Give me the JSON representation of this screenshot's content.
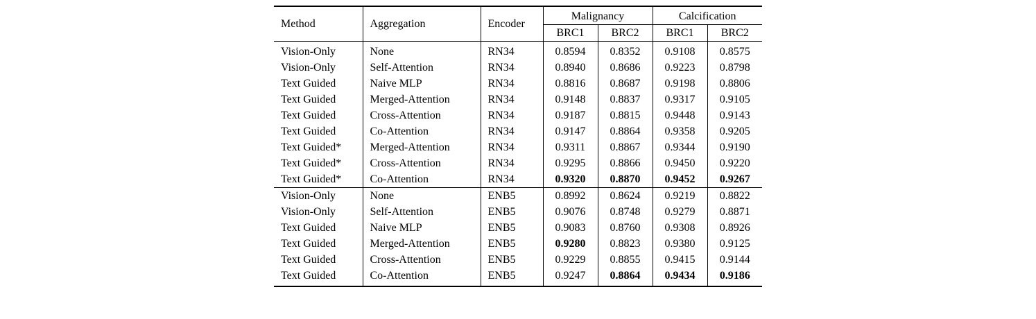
{
  "table": {
    "header": {
      "method": "Method",
      "aggregation": "Aggregation",
      "encoder": "Encoder",
      "malignancy": "Malignancy",
      "calcification": "Calcification",
      "sub": [
        "BRC1",
        "BRC2",
        "BRC1",
        "BRC2"
      ]
    },
    "section_break_index": 9,
    "rows": [
      {
        "method": "Vision-Only",
        "aggregation": "None",
        "encoder": "RN34",
        "values": [
          "0.8594",
          "0.8352",
          "0.9108",
          "0.8575"
        ],
        "bold": [
          false,
          false,
          false,
          false
        ]
      },
      {
        "method": "Vision-Only",
        "aggregation": "Self-Attention",
        "encoder": "RN34",
        "values": [
          "0.8940",
          "0.8686",
          "0.9223",
          "0.8798"
        ],
        "bold": [
          false,
          false,
          false,
          false
        ]
      },
      {
        "method": "Text Guided",
        "aggregation": "Naive MLP",
        "encoder": "RN34",
        "values": [
          "0.8816",
          "0.8687",
          "0.9198",
          "0.8806"
        ],
        "bold": [
          false,
          false,
          false,
          false
        ]
      },
      {
        "method": "Text Guided",
        "aggregation": "Merged-Attention",
        "encoder": "RN34",
        "values": [
          "0.9148",
          "0.8837",
          "0.9317",
          "0.9105"
        ],
        "bold": [
          false,
          false,
          false,
          false
        ]
      },
      {
        "method": "Text Guided",
        "aggregation": "Cross-Attention",
        "encoder": "RN34",
        "values": [
          "0.9187",
          "0.8815",
          "0.9448",
          "0.9143"
        ],
        "bold": [
          false,
          false,
          false,
          false
        ]
      },
      {
        "method": "Text Guided",
        "aggregation": "Co-Attention",
        "encoder": "RN34",
        "values": [
          "0.9147",
          "0.8864",
          "0.9358",
          "0.9205"
        ],
        "bold": [
          false,
          false,
          false,
          false
        ]
      },
      {
        "method": "Text Guided*",
        "aggregation": "Merged-Attention",
        "encoder": "RN34",
        "values": [
          "0.9311",
          "0.8867",
          "0.9344",
          "0.9190"
        ],
        "bold": [
          false,
          false,
          false,
          false
        ]
      },
      {
        "method": "Text Guided*",
        "aggregation": "Cross-Attention",
        "encoder": "RN34",
        "values": [
          "0.9295",
          "0.8866",
          "0.9450",
          "0.9220"
        ],
        "bold": [
          false,
          false,
          false,
          false
        ]
      },
      {
        "method": "Text Guided*",
        "aggregation": "Co-Attention",
        "encoder": "RN34",
        "values": [
          "0.9320",
          "0.8870",
          "0.9452",
          "0.9267"
        ],
        "bold": [
          true,
          true,
          true,
          true
        ]
      },
      {
        "method": "Vision-Only",
        "aggregation": "None",
        "encoder": "ENB5",
        "values": [
          "0.8992",
          "0.8624",
          "0.9219",
          "0.8822"
        ],
        "bold": [
          false,
          false,
          false,
          false
        ]
      },
      {
        "method": "Vision-Only",
        "aggregation": "Self-Attention",
        "encoder": "ENB5",
        "values": [
          "0.9076",
          "0.8748",
          "0.9279",
          "0.8871"
        ],
        "bold": [
          false,
          false,
          false,
          false
        ]
      },
      {
        "method": "Text Guided",
        "aggregation": "Naive MLP",
        "encoder": "ENB5",
        "values": [
          "0.9083",
          "0.8760",
          "0.9308",
          "0.8926"
        ],
        "bold": [
          false,
          false,
          false,
          false
        ]
      },
      {
        "method": "Text Guided",
        "aggregation": "Merged-Attention",
        "encoder": "ENB5",
        "values": [
          "0.9280",
          "0.8823",
          "0.9380",
          "0.9125"
        ],
        "bold": [
          true,
          false,
          false,
          false
        ]
      },
      {
        "method": "Text Guided",
        "aggregation": "Cross-Attention",
        "encoder": "ENB5",
        "values": [
          "0.9229",
          "0.8855",
          "0.9415",
          "0.9144"
        ],
        "bold": [
          false,
          false,
          false,
          false
        ]
      },
      {
        "method": "Text Guided",
        "aggregation": "Co-Attention",
        "encoder": "ENB5",
        "values": [
          "0.9247",
          "0.8864",
          "0.9434",
          "0.9186"
        ],
        "bold": [
          false,
          true,
          true,
          true
        ]
      }
    ]
  }
}
